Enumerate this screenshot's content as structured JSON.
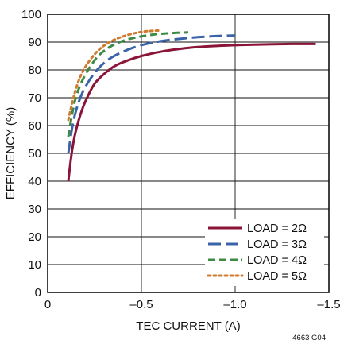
{
  "chart_data": {
    "type": "line",
    "xlabel": "TEC CURRENT (A)",
    "ylabel": "EFFICIENCY (%)",
    "xlim": [
      0,
      -1.5
    ],
    "ylim": [
      0,
      100
    ],
    "x_ticks": [
      0,
      -0.5,
      -1.0,
      -1.5
    ],
    "x_tick_labels": [
      "0",
      "–0.5",
      "–1.0",
      "–1.5"
    ],
    "y_ticks": [
      0,
      10,
      20,
      30,
      40,
      50,
      60,
      70,
      80,
      90,
      100
    ],
    "y_tick_labels": [
      "0",
      "10",
      "20",
      "30",
      "40",
      "50",
      "60",
      "70",
      "80",
      "90",
      "100"
    ],
    "grid": true,
    "legend_position": "bottom-right",
    "series": [
      {
        "name": "LOAD = 2Ω",
        "color": "#8a1538",
        "dash": "solid",
        "x": [
          -0.11,
          -0.13,
          -0.15,
          -0.18,
          -0.21,
          -0.25,
          -0.3,
          -0.36,
          -0.43,
          -0.5,
          -0.6,
          -0.7,
          -0.8,
          -0.9,
          -1.0,
          -1.1,
          -1.2,
          -1.3,
          -1.43
        ],
        "y": [
          40,
          51,
          58,
          65,
          70,
          75,
          78.5,
          81.5,
          83.5,
          85,
          86.5,
          87.5,
          88.2,
          88.6,
          88.9,
          89.1,
          89.2,
          89.3,
          89.3
        ]
      },
      {
        "name": "LOAD = 3Ω",
        "color": "#3a63a8",
        "dash": "long-dash",
        "x": [
          -0.11,
          -0.13,
          -0.15,
          -0.18,
          -0.22,
          -0.27,
          -0.33,
          -0.4,
          -0.48,
          -0.56,
          -0.65,
          -0.75,
          -0.85,
          -0.95,
          -1.0
        ],
        "y": [
          50,
          59,
          65,
          71,
          76,
          80.5,
          84,
          86.5,
          88.5,
          89.8,
          90.8,
          91.5,
          92,
          92.3,
          92.4
        ]
      },
      {
        "name": "LOAD = 4Ω",
        "color": "#3d8a45",
        "dash": "dash",
        "x": [
          -0.11,
          -0.13,
          -0.15,
          -0.18,
          -0.22,
          -0.27,
          -0.33,
          -0.4,
          -0.48,
          -0.56,
          -0.65,
          -0.75
        ],
        "y": [
          56,
          64,
          70,
          75.5,
          80.5,
          85,
          88.2,
          90.4,
          91.8,
          92.7,
          93.2,
          93.5
        ]
      },
      {
        "name": "LOAD = 5Ω",
        "color": "#d07a2e",
        "dash": "dot",
        "x": [
          -0.11,
          -0.13,
          -0.15,
          -0.18,
          -0.22,
          -0.27,
          -0.33,
          -0.4,
          -0.47,
          -0.53,
          -0.6
        ],
        "y": [
          62,
          68,
          73,
          78.5,
          83,
          87,
          90,
          92,
          93.3,
          93.9,
          94.2
        ]
      }
    ]
  },
  "figure_code": "4663 G04"
}
